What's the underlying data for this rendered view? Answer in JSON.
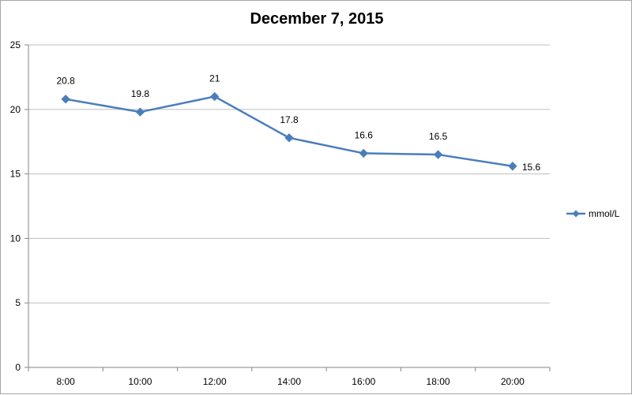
{
  "chart_data": {
    "type": "line",
    "title": "December 7, 2015",
    "xlabel": "",
    "ylabel": "",
    "categories": [
      "8:00",
      "10:00",
      "12:00",
      "14:00",
      "16:00",
      "18:00",
      "20:00"
    ],
    "series": [
      {
        "name": "mmol/L",
        "values": [
          20.8,
          19.8,
          21,
          17.8,
          16.6,
          16.5,
          15.6
        ],
        "data_labels": [
          "20.8",
          "19.8",
          "21",
          "17.8",
          "16.6",
          "16.5",
          "15.6"
        ]
      }
    ],
    "ylim": [
      0,
      25
    ],
    "yticks": [
      "0",
      "5",
      "10",
      "15",
      "20",
      "25"
    ],
    "grid": "horizontal",
    "legend": "right",
    "colors": {
      "series": "#4a7ebb",
      "grid": "#bfbfbf",
      "axis": "#868686"
    }
  }
}
